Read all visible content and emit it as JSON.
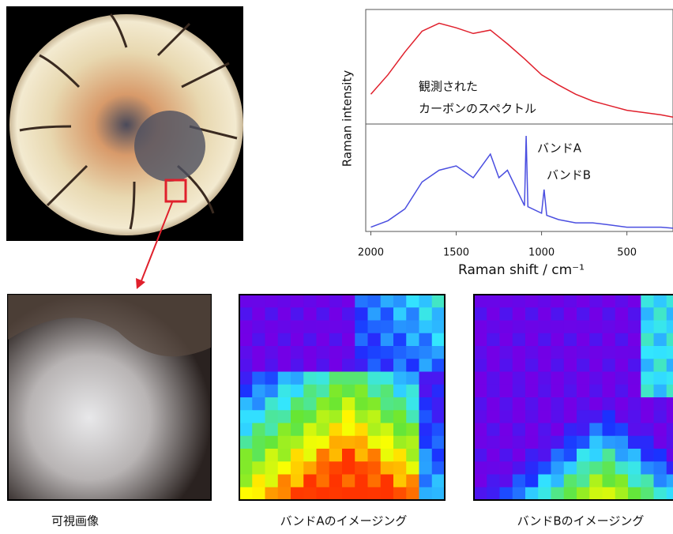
{
  "chart_data": {
    "type": "line",
    "ylabel": "Raman intensity",
    "xlabel": "Raman shift / cm⁻¹",
    "xlim": [
      2030,
      230
    ],
    "xticks": [
      2000,
      1500,
      1000,
      500
    ],
    "ylim": [
      0,
      100
    ],
    "panels": [
      {
        "annotations": [
          "観測された",
          "カーボンのスペクトル"
        ],
        "series": [
          {
            "color": "#e0202c",
            "x": [
              2000,
              1900,
              1800,
              1700,
              1600,
              1500,
              1400,
              1300,
              1200,
              1100,
              1000,
              900,
              800,
              700,
              600,
              500,
              400,
              300,
              230
            ],
            "values": [
              26,
              43,
              63,
              81,
              88,
              84,
              79,
              82,
              70,
              57,
              43,
              34,
              26,
              20,
              16,
              12,
              10,
              8,
              6
            ]
          }
        ]
      },
      {
        "annotations": [
          "バンドA",
          "バンドB"
        ],
        "series": [
          {
            "color": "#4a4ee0",
            "x": [
              2000,
              1900,
              1800,
              1700,
              1600,
              1500,
              1400,
              1300,
              1250,
              1200,
              1100,
              1090,
              1080,
              1000,
              985,
              970,
              900,
              800,
              700,
              600,
              500,
              400,
              300,
              230
            ],
            "values": [
              4,
              10,
              21,
              46,
              57,
              61,
              50,
              72,
              50,
              57,
              24,
              89,
              23,
              17,
              39,
              15,
              11,
              8,
              8,
              6,
              4,
              4,
              4,
              3
            ]
          }
        ]
      }
    ]
  },
  "captions": [
    "可視画像",
    "バンドAのイメージング",
    "バンドBのイメージング"
  ]
}
